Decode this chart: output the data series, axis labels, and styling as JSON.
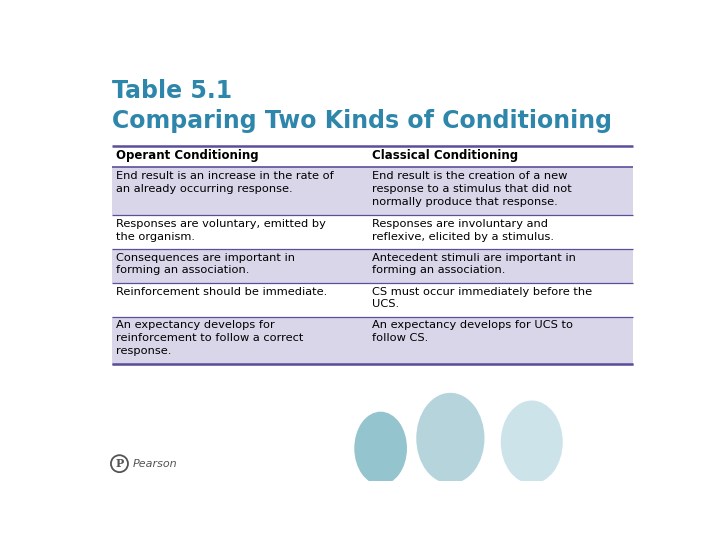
{
  "title_line1": "Table 5.1",
  "title_line2": "Comparing Two Kinds of Conditioning",
  "title_color": "#2E86AB",
  "header_col1": "Operant Conditioning",
  "header_col2": "Classical Conditioning",
  "row_bg_shaded": "#D9D6EA",
  "row_bg_white": "#FFFFFF",
  "border_color": "#5C4F9A",
  "rows": [
    {
      "col1": "End result is an increase in the rate of\nan already occurring response.",
      "col2": "End result is the creation of a new\nresponse to a stimulus that did not\nnormally produce that response.",
      "shaded": true
    },
    {
      "col1": "Responses are voluntary, emitted by\nthe organism.",
      "col2": "Responses are involuntary and\nreflexive, elicited by a stimulus.",
      "shaded": false
    },
    {
      "col1": "Consequences are important in\nforming an association.",
      "col2": "Antecedent stimuli are important in\nforming an association.",
      "shaded": true
    },
    {
      "col1": "Reinforcement should be immediate.",
      "col2": "CS must occur immediately before the\nUCS.",
      "shaded": false
    },
    {
      "col1": "An expectancy develops for\nreinforcement to follow a correct\nresponse.",
      "col2": "An expectancy develops for UCS to\nfollow CS.",
      "shaded": true
    }
  ],
  "background_color": "#FFFFFF",
  "ellipse_colors": [
    "#89BEC8",
    "#A8CDD6",
    "#BDDAE3"
  ],
  "pearson_color": "#555555",
  "fig_width": 7.2,
  "fig_height": 5.4,
  "dpi": 100
}
